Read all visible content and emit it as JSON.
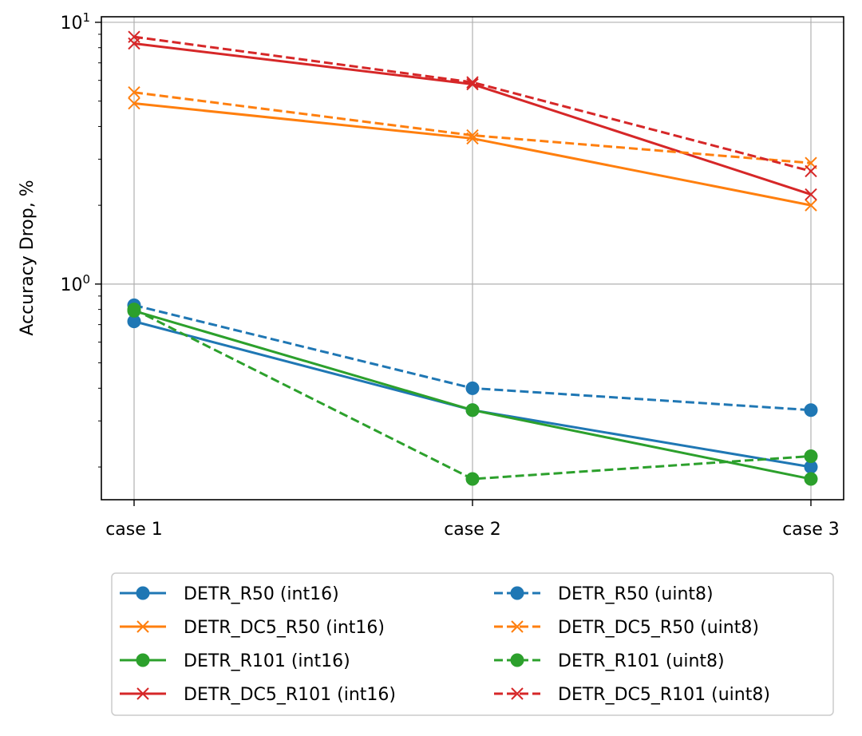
{
  "chart_data": {
    "type": "line",
    "yscale": "log",
    "title": "",
    "xlabel": "",
    "ylabel": "Accuracy Drop, %",
    "categories": [
      "case 1",
      "case 2",
      "case 3"
    ],
    "ylim": [
      0.15,
      10.5
    ],
    "yticks": [
      {
        "value": 1,
        "base": "10",
        "exp": "0"
      },
      {
        "value": 10,
        "base": "10",
        "exp": "1"
      }
    ],
    "grid": true,
    "legend_position": "below",
    "series": [
      {
        "name": "DETR_R50 (int16)",
        "color": "#1f77b4",
        "style": "solid",
        "marker": "circle",
        "values": [
          0.72,
          0.33,
          0.2
        ]
      },
      {
        "name": "DETR_DC5_R50 (int16)",
        "color": "#ff7f0e",
        "style": "solid",
        "marker": "x",
        "values": [
          4.9,
          3.6,
          2.0
        ]
      },
      {
        "name": "DETR_R101 (int16)",
        "color": "#2ca02c",
        "style": "solid",
        "marker": "circle",
        "values": [
          0.79,
          0.33,
          0.18
        ]
      },
      {
        "name": "DETR_DC5_R101 (int16)",
        "color": "#d62728",
        "style": "solid",
        "marker": "x",
        "values": [
          8.3,
          5.8,
          2.2
        ]
      },
      {
        "name": "DETR_R50 (uint8)",
        "color": "#1f77b4",
        "style": "dashed",
        "marker": "circle",
        "values": [
          0.83,
          0.4,
          0.33
        ]
      },
      {
        "name": "DETR_DC5_R50 (uint8)",
        "color": "#ff7f0e",
        "style": "dashed",
        "marker": "x",
        "values": [
          5.4,
          3.7,
          2.9
        ]
      },
      {
        "name": "DETR_R101 (uint8)",
        "color": "#2ca02c",
        "style": "dashed",
        "marker": "circle",
        "values": [
          0.8,
          0.18,
          0.22
        ]
      },
      {
        "name": "DETR_DC5_R101 (uint8)",
        "color": "#d62728",
        "style": "dashed",
        "marker": "x",
        "values": [
          8.8,
          5.9,
          2.7
        ]
      }
    ]
  }
}
